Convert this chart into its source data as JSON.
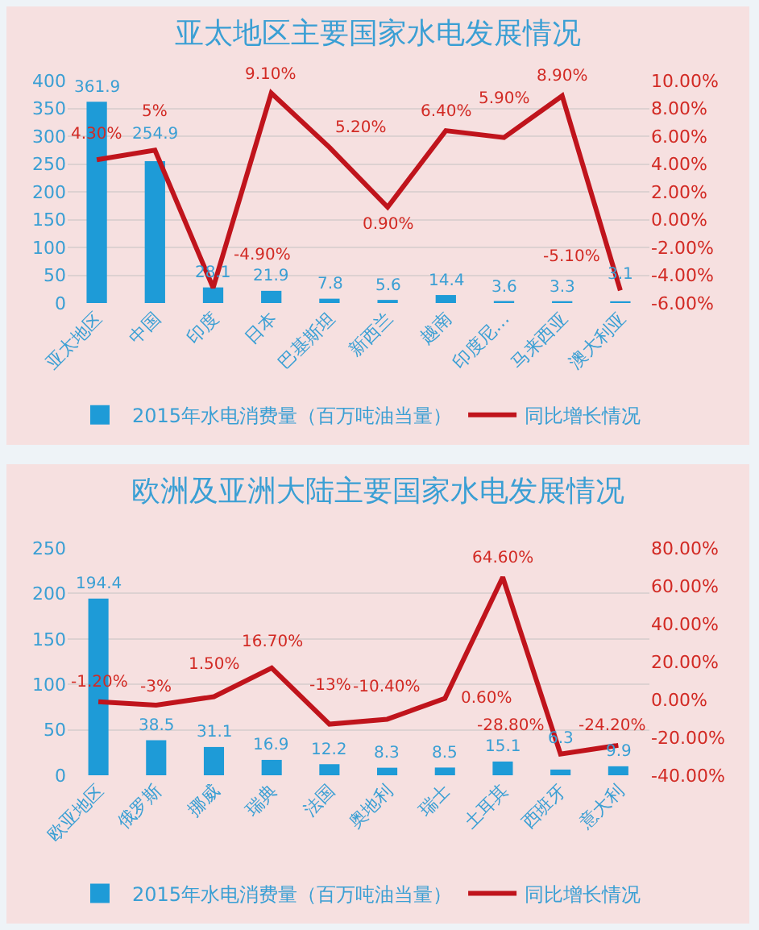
{
  "chart_data": [
    {
      "type": "bar",
      "title": "亚太地区主要国家水电发展情况",
      "categories": [
        "亚太地区",
        "中国",
        "印度",
        "日本",
        "巴基斯坦",
        "新西兰",
        "越南",
        "印度尼…",
        "马来西亚",
        "澳大利亚"
      ],
      "series": [
        {
          "name": "2015年水电消费量（百万吨油当量）",
          "color": "#1e9bd7",
          "values": [
            361.9,
            254.9,
            28.1,
            21.9,
            7.8,
            5.6,
            14.4,
            3.6,
            3.3,
            3.1
          ],
          "value_labels": [
            "361.9",
            "254.9",
            "28.1",
            "21.9",
            "7.8",
            "5.6",
            "14.4",
            "3.6",
            "3.3",
            "3.1"
          ]
        },
        {
          "name": "同比增长情况",
          "type": "line",
          "axis": "y2",
          "color": "#c0141c",
          "values": [
            4.3,
            5,
            -4.9,
            9.1,
            5.2,
            0.9,
            6.4,
            5.9,
            8.9,
            -5.1
          ],
          "value_labels": [
            "4.30%",
            "5%",
            "-4.90%",
            "9.10%",
            "5.20%",
            "0.90%",
            "6.40%",
            "5.90%",
            "8.90%",
            "-5.10%"
          ]
        }
      ],
      "ylim": [
        0,
        400
      ],
      "yticks": [
        0,
        50,
        100,
        150,
        200,
        250,
        300,
        350,
        400
      ],
      "y2lim": [
        -6,
        10
      ],
      "y2ticks": [
        {
          "value": -6,
          "label": "-6.00%"
        },
        {
          "value": -4,
          "label": "-4.00%"
        },
        {
          "value": -2,
          "label": "-2.00%"
        },
        {
          "value": 0,
          "label": "0.00%"
        },
        {
          "value": 2,
          "label": "2.00%"
        },
        {
          "value": 4,
          "label": "4.00%"
        },
        {
          "value": 6,
          "label": "6.00%"
        },
        {
          "value": 8,
          "label": "8.00%"
        },
        {
          "value": 10,
          "label": "10.00%"
        }
      ],
      "grid": "y",
      "legend": "bottom"
    },
    {
      "type": "bar",
      "title": "欧洲及亚洲大陆主要国家水电发展情况",
      "categories": [
        "欧亚地区",
        "俄罗斯",
        "挪威",
        "瑞典",
        "法国",
        "奥地利",
        "瑞士",
        "土耳其",
        "西班牙",
        "意大利"
      ],
      "series": [
        {
          "name": "2015年水电消费量（百万吨油当量）",
          "color": "#1e9bd7",
          "values": [
            194.4,
            38.5,
            31.1,
            16.9,
            12.2,
            8.3,
            8.5,
            15.1,
            6.3,
            9.9
          ],
          "value_labels": [
            "194.4",
            "38.5",
            "31.1",
            "16.9",
            "12.2",
            "8.3",
            "8.5",
            "15.1",
            "6.3",
            "9.9"
          ]
        },
        {
          "name": "同比增长情况",
          "type": "line",
          "axis": "y2",
          "color": "#c0141c",
          "values": [
            -1.2,
            -3,
            1.5,
            16.7,
            -13,
            -10.4,
            0.6,
            64.6,
            -28.8,
            -24.2
          ],
          "value_labels": [
            "-1.20%",
            "-3%",
            "1.50%",
            "16.70%",
            "-13%",
            "-10.40%",
            "0.60%",
            "64.60%",
            "-28.80%",
            "-24.20%"
          ]
        }
      ],
      "ylim": [
        0,
        250
      ],
      "yticks": [
        0,
        50,
        100,
        150,
        200,
        250
      ],
      "y2lim": [
        -40,
        80
      ],
      "y2ticks": [
        {
          "value": -40,
          "label": "-40.00%"
        },
        {
          "value": -20,
          "label": "-20.00%"
        },
        {
          "value": 0,
          "label": "0.00%"
        },
        {
          "value": 20,
          "label": "20.00%"
        },
        {
          "value": 40,
          "label": "40.00%"
        },
        {
          "value": 60,
          "label": "60.00%"
        },
        {
          "value": 80,
          "label": "80.00%"
        }
      ],
      "grid": "y",
      "legend": "bottom"
    }
  ]
}
